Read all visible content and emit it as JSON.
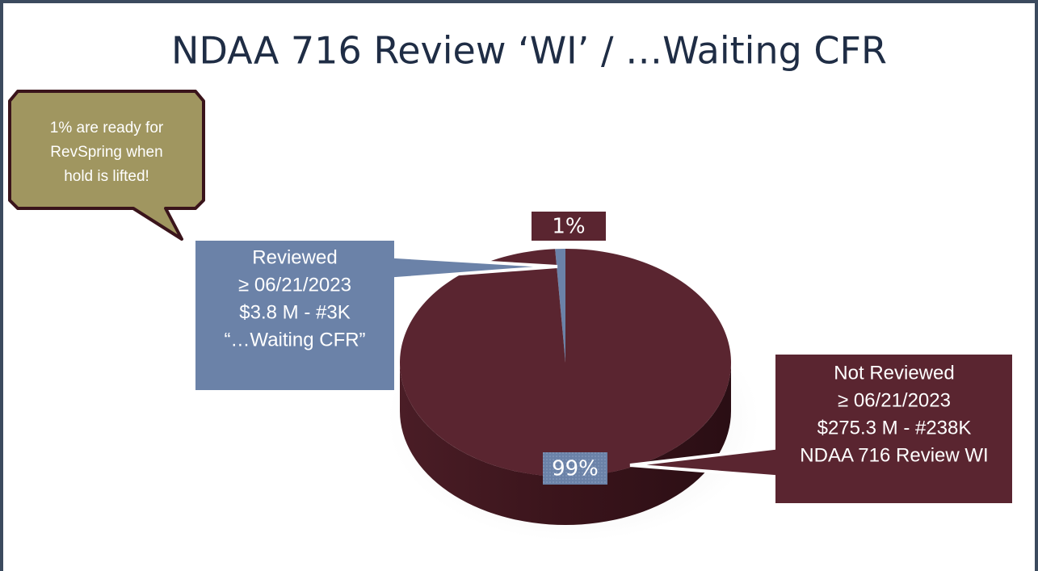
{
  "chart_data": {
    "type": "pie",
    "title": "NDAA 716 Review ‘WI’ / …Waiting CFR",
    "values": [
      1,
      99
    ],
    "value_labels": [
      "1%",
      "99%"
    ],
    "colors": [
      "#6b82a8",
      "#5a2530"
    ],
    "annotations": [
      {
        "lines": [
          "1% are ready for",
          "RevSpring when",
          "hold is lifted!"
        ]
      },
      {
        "lines": [
          "Reviewed",
          "≥ 06/21/2023",
          "$3.8 M - #3K",
          "“…Waiting CFR”"
        ]
      },
      {
        "lines": [
          "Not Reviewed",
          "≥ 06/21/2023",
          "$275.3 M - #238K",
          "NDAA 716 Review WI"
        ]
      }
    ]
  }
}
